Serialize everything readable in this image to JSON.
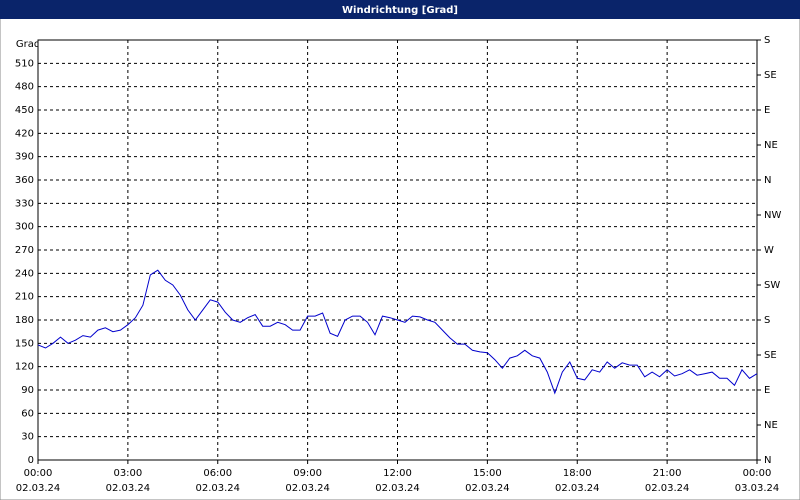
{
  "chart_data": {
    "type": "line",
    "title": "Windrichtung [Grad]",
    "ylabel": "Grad",
    "x": [
      0,
      0.25,
      0.5,
      0.75,
      1,
      1.25,
      1.5,
      1.75,
      2,
      2.25,
      2.5,
      2.75,
      3,
      3.25,
      3.5,
      3.75,
      4,
      4.25,
      4.5,
      4.75,
      5,
      5.25,
      5.5,
      5.75,
      6,
      6.25,
      6.5,
      6.75,
      7,
      7.25,
      7.5,
      7.75,
      8,
      8.25,
      8.5,
      8.75,
      9,
      9.25,
      9.5,
      9.75,
      10,
      10.25,
      10.5,
      10.75,
      11,
      11.25,
      11.5,
      11.75,
      12,
      12.25,
      12.5,
      12.75,
      13,
      13.25,
      13.5,
      13.75,
      14,
      14.25,
      14.5,
      14.75,
      15,
      15.25,
      15.5,
      15.75,
      16,
      16.25,
      16.5,
      16.75,
      17,
      17.25,
      17.5,
      17.75,
      18,
      18.25,
      18.5,
      18.75,
      19,
      19.25,
      19.5,
      19.75,
      20,
      20.25,
      20.5,
      20.75,
      21,
      21.25,
      21.5,
      21.75,
      22,
      22.25,
      22.5,
      22.75,
      23,
      23.25,
      23.5,
      23.75,
      24
    ],
    "series": [
      {
        "color": "#0000cc",
        "values": [
          148,
          144,
          150,
          158,
          150,
          154,
          160,
          158,
          167,
          170,
          165,
          167,
          174,
          183,
          199,
          238,
          244,
          231,
          225,
          212,
          193,
          180,
          193,
          206,
          203,
          190,
          180,
          177,
          183,
          187,
          172,
          172,
          177,
          174,
          167,
          167,
          185,
          185,
          189,
          163,
          159,
          180,
          185,
          185,
          177,
          161,
          185,
          183,
          180,
          177,
          185,
          184,
          180,
          177,
          167,
          157,
          149,
          149,
          141,
          139,
          138,
          129,
          118,
          131,
          134,
          141,
          134,
          131,
          113,
          86,
          113,
          126,
          105,
          103,
          116,
          113,
          126,
          118,
          125,
          122,
          122,
          107,
          113,
          107,
          116,
          108,
          111,
          116,
          109,
          111,
          113,
          105,
          105,
          96,
          116,
          105,
          111
        ]
      }
    ],
    "xlim": [
      0,
      24
    ],
    "xticks": [
      {
        "value": 0,
        "label": "00:00"
      },
      {
        "value": 3,
        "label": "03:00"
      },
      {
        "value": 6,
        "label": "06:00"
      },
      {
        "value": 9,
        "label": "09:00"
      },
      {
        "value": 12,
        "label": "12:00"
      },
      {
        "value": 15,
        "label": "15:00"
      },
      {
        "value": 18,
        "label": "18:00"
      },
      {
        "value": 21,
        "label": "21:00"
      },
      {
        "value": 24,
        "label": "00:00"
      }
    ],
    "xtick_dates": [
      "02.03.24",
      "02.03.24",
      "02.03.24",
      "02.03.24",
      "02.03.24",
      "02.03.24",
      "02.03.24",
      "02.03.24",
      "03.03.24"
    ],
    "ylim": [
      0,
      540
    ],
    "yticks": [
      0,
      30,
      60,
      90,
      120,
      150,
      180,
      210,
      240,
      270,
      300,
      330,
      360,
      390,
      420,
      450,
      480,
      510
    ],
    "y2lim": [
      0,
      540
    ],
    "y2ticks": [
      {
        "value": 0,
        "label": "N"
      },
      {
        "value": 45,
        "label": "NE"
      },
      {
        "value": 90,
        "label": "E"
      },
      {
        "value": 135,
        "label": "SE"
      },
      {
        "value": 180,
        "label": "S"
      },
      {
        "value": 225,
        "label": "SW"
      },
      {
        "value": 270,
        "label": "W"
      },
      {
        "value": 315,
        "label": "NW"
      },
      {
        "value": 360,
        "label": "N"
      },
      {
        "value": 405,
        "label": "NE"
      },
      {
        "value": 450,
        "label": "E"
      },
      {
        "value": 495,
        "label": "SE"
      },
      {
        "value": 540,
        "label": "S"
      }
    ],
    "grid": true
  }
}
